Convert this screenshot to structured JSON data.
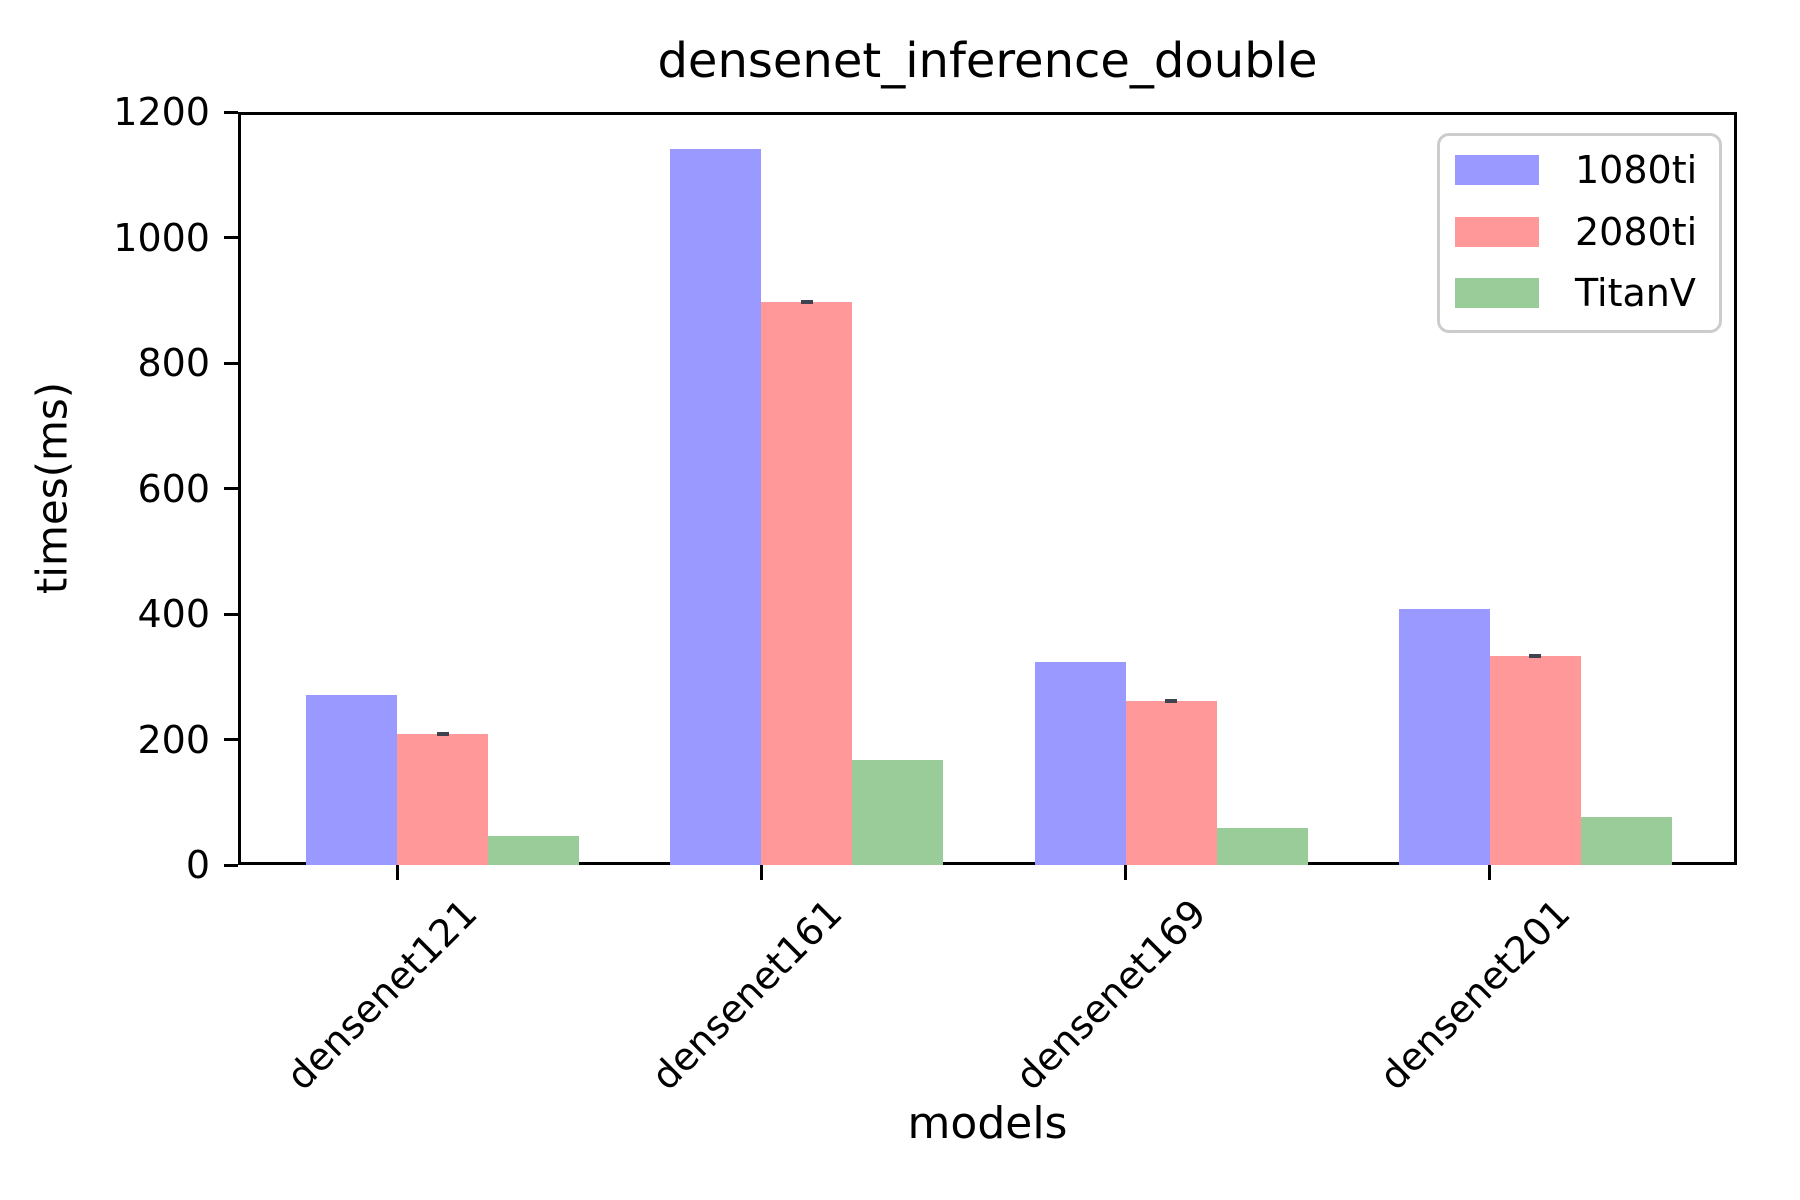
{
  "chart_data": {
    "type": "bar",
    "title": "densenet_inference_double",
    "xlabel": "models",
    "ylabel": "times(ms)",
    "categories": [
      "densenet121",
      "densenet161",
      "densenet169",
      "densenet201"
    ],
    "series": [
      {
        "name": "1080ti",
        "color": "#9999ff",
        "values": [
          271,
          1141,
          323,
          408
        ]
      },
      {
        "name": "2080ti",
        "color": "#ff9999",
        "values": [
          209,
          897,
          261,
          333
        ],
        "error": [
          3,
          4,
          3,
          4
        ]
      },
      {
        "name": "TitanV",
        "color": "#99cc99",
        "values": [
          46,
          167,
          59,
          76
        ]
      }
    ],
    "ylim": [
      0,
      1200
    ],
    "yticks": [
      0,
      200,
      400,
      600,
      800,
      1000,
      1200
    ],
    "grid": false,
    "legend": {
      "position": "upper right",
      "entries": [
        "1080ti",
        "2080ti",
        "TitanV"
      ]
    },
    "error_bar_color": "#3d4450",
    "background": "#ffffff"
  }
}
